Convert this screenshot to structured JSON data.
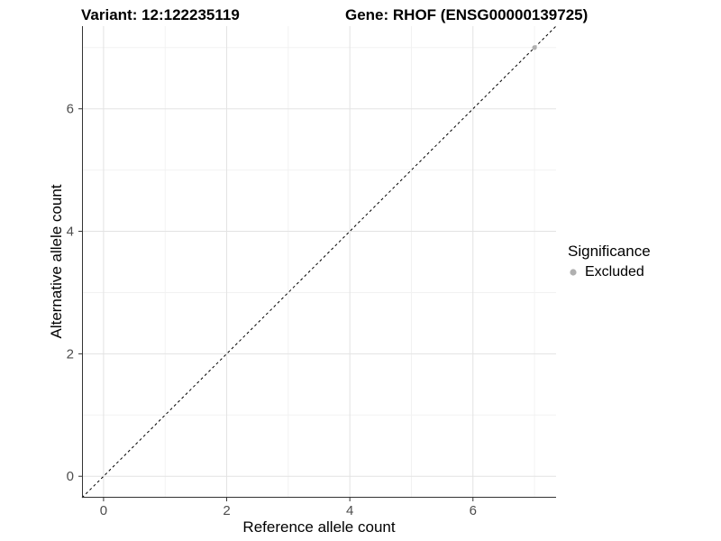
{
  "titles": {
    "variant": "Variant: 12:122235119",
    "gene": "Gene: RHOF (ENSG00000139725)"
  },
  "axes": {
    "x_label": "Reference allele count",
    "y_label": "Alternative allele count"
  },
  "legend": {
    "title": "Significance",
    "items": [
      {
        "label": "Excluded",
        "color": "#b0b0b0"
      }
    ]
  },
  "colors": {
    "grid_major": "#e3e3e3",
    "grid_minor": "#f2f2f2",
    "axis_line": "#333333",
    "tick_text": "#4d4d4d",
    "identity_line": "#000000",
    "point_excluded": "#b0b0b0"
  },
  "chart_data": {
    "type": "scatter",
    "title": "Variant: 12:122235119  /  Gene: RHOF (ENSG00000139725)",
    "xlabel": "Reference allele count",
    "ylabel": "Alternative allele count",
    "xlim": [
      -0.35,
      7.35
    ],
    "ylim": [
      -0.35,
      7.35
    ],
    "major_ticks": [
      0,
      2,
      4,
      6
    ],
    "minor_ticks": [
      1,
      3,
      5,
      7
    ],
    "grid": true,
    "legend_position": "right",
    "identity_line": {
      "equation": "y = x",
      "style": "dashed",
      "color": "#000000"
    },
    "series": [
      {
        "name": "Excluded",
        "color": "#b0b0b0",
        "points": [
          {
            "x": 7,
            "y": 7
          }
        ]
      }
    ]
  }
}
